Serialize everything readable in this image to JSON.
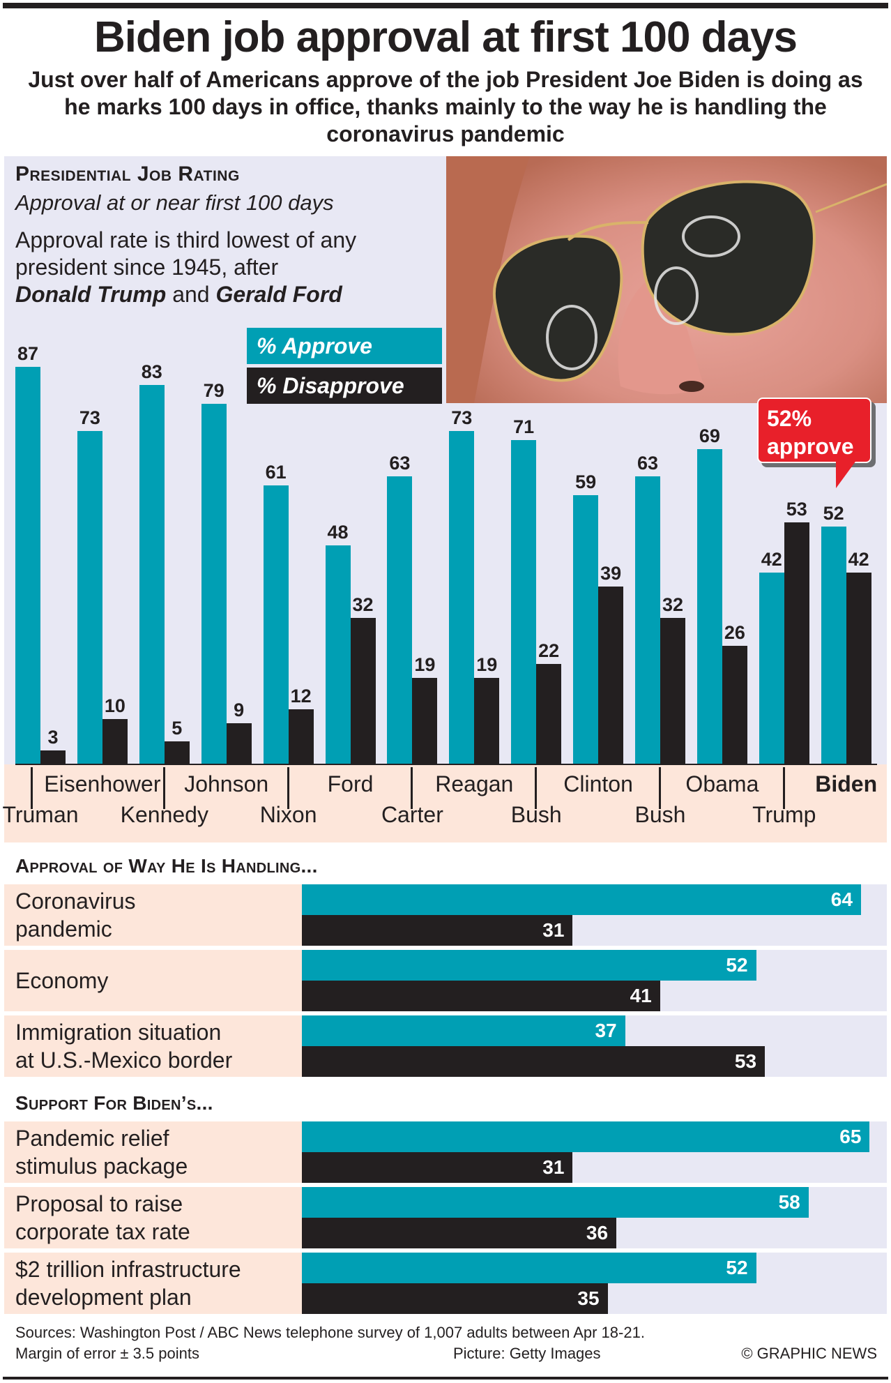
{
  "header": {
    "title": "Biden job approval at first 100 days",
    "subtitle": "Just over half of Americans approve of the job President Joe Biden is doing as he marks 100 days in office, thanks mainly to the way he is handling the coronavirus pandemic"
  },
  "colors": {
    "approve": "#009fb4",
    "disapprove": "#231f20",
    "callout": "#e8202a",
    "panel_bg": "#e8e8f4",
    "label_bg": "#fde6da"
  },
  "panel1": {
    "heading": "Presidential Job Rating",
    "subheading": "Approval at or near first 100 days",
    "note_prefix": "Approval rate is third lowest of any president since 1945, after",
    "note_name1": "Donald Trump",
    "note_and": "and",
    "note_name2": "Gerald Ford",
    "photo_alt": "Close-up of Joe Biden wearing aviator sunglasses",
    "callout_line1": "52%",
    "callout_line2": "approve"
  },
  "chart_data": [
    {
      "type": "bar",
      "title": "Presidential Job Rating",
      "subtitle": "Approval at or near first 100 days",
      "categories": [
        "Truman",
        "Eisenhower",
        "Kennedy",
        "Johnson",
        "Nixon",
        "Ford",
        "Carter",
        "Reagan",
        "Bush",
        "Clinton",
        "Bush",
        "Obama",
        "Trump",
        "Biden"
      ],
      "label_row": [
        "bottom",
        "top",
        "bottom",
        "top",
        "bottom",
        "top",
        "bottom",
        "top",
        "bottom",
        "top",
        "bottom",
        "top",
        "bottom",
        "top"
      ],
      "series": [
        {
          "name": "% Approve",
          "values": [
            87,
            73,
            83,
            79,
            61,
            48,
            63,
            73,
            71,
            59,
            63,
            69,
            42,
            52
          ]
        },
        {
          "name": "% Disapprove",
          "values": [
            3,
            10,
            5,
            9,
            12,
            32,
            19,
            19,
            22,
            39,
            32,
            26,
            53,
            42
          ]
        }
      ],
      "ylim": [
        0,
        100
      ],
      "grid": false,
      "legend": "top-center",
      "highlight": "Biden",
      "annotation": "52% approve"
    },
    {
      "type": "bar",
      "orientation": "horizontal",
      "title": "Approval of way he is handling...",
      "categories": [
        "Coronavirus pandemic",
        "Economy",
        "Immigration situation at U.S.-Mexico border"
      ],
      "series": [
        {
          "name": "% Approve",
          "values": [
            64,
            52,
            37
          ]
        },
        {
          "name": "% Disapprove",
          "values": [
            31,
            41,
            53
          ]
        }
      ],
      "xlim": [
        0,
        70
      ]
    },
    {
      "type": "bar",
      "orientation": "horizontal",
      "title": "Support for Biden's...",
      "categories": [
        "Pandemic relief stimulus package",
        "Proposal to raise corporate tax rate",
        "$2 trillion infrastructure development plan"
      ],
      "series": [
        {
          "name": "% Approve",
          "values": [
            65,
            58,
            52
          ]
        },
        {
          "name": "% Disapprove",
          "values": [
            31,
            36,
            35
          ]
        }
      ],
      "xlim": [
        0,
        70
      ]
    }
  ],
  "section2": {
    "heading": "Approval of Way He Is Handling...",
    "rows": [
      {
        "label_line1": "Coronavirus",
        "label_line2": "pandemic",
        "approve": "64",
        "disapprove": "31"
      },
      {
        "label_line1": "Economy",
        "label_line2": "",
        "approve": "52",
        "disapprove": "41"
      },
      {
        "label_line1": "Immigration situation",
        "label_line2": "at U.S.-Mexico border",
        "approve": "37",
        "disapprove": "53"
      }
    ]
  },
  "section3": {
    "heading": "Support For Biden’s...",
    "rows": [
      {
        "label_line1": "Pandemic relief",
        "label_line2": "stimulus package",
        "approve": "65",
        "disapprove": "31"
      },
      {
        "label_line1": "Proposal to raise",
        "label_line2": "corporate tax rate",
        "approve": "58",
        "disapprove": "36"
      },
      {
        "label_line1": "$2 trillion infrastructure",
        "label_line2": "development plan",
        "approve": "52",
        "disapprove": "35"
      }
    ]
  },
  "legend": {
    "approve": "% Approve",
    "disapprove": "% Disapprove"
  },
  "footer": {
    "sources": "Sources: Washington Post / ABC News telephone survey of 1,007 adults between Apr 18-21.",
    "margin": "Margin of error ± 3.5 points",
    "picture": "Picture: Getty Images",
    "credit": "© GRAPHIC NEWS"
  }
}
